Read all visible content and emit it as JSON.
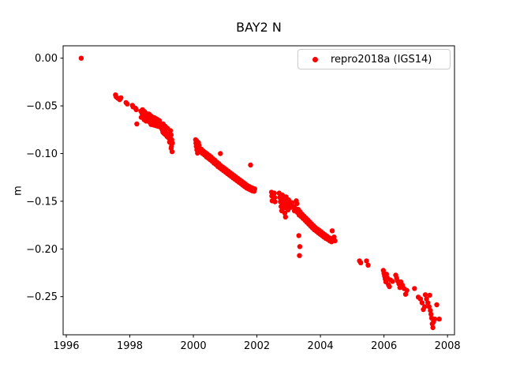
{
  "chart_data": {
    "type": "scatter",
    "title": "BAY2 N",
    "xlabel": "",
    "ylabel": "m",
    "xlim": [
      1995.9,
      2008.22
    ],
    "ylim": [
      -0.29,
      0.013
    ],
    "xticks": [
      1996,
      1998,
      2000,
      2002,
      2004,
      2006,
      2008
    ],
    "yticks": [
      0.0,
      -0.05,
      -0.1,
      -0.15,
      -0.2,
      -0.25
    ],
    "grid": false,
    "background_color": "#ffffff",
    "legend": {
      "position": "upper right",
      "entries": [
        {
          "label": "repro2018a (IGS14)",
          "marker": "circle",
          "marker_color": "#ff0000"
        }
      ]
    },
    "series": [
      {
        "name": "repro2018a (IGS14)",
        "color": "#ff0000",
        "marker": "o",
        "marker_px_radius": 3.2,
        "points": [
          [
            1996.47,
            0.0
          ],
          [
            1997.55,
            -0.0385
          ],
          [
            1997.57,
            -0.0405
          ],
          [
            1997.62,
            -0.042
          ],
          [
            1997.68,
            -0.0435
          ],
          [
            1997.72,
            -0.0415
          ],
          [
            1997.88,
            -0.0465
          ],
          [
            1997.92,
            -0.048
          ],
          [
            1998.08,
            -0.0495
          ],
          [
            1998.1,
            -0.051
          ],
          [
            1998.18,
            -0.0525
          ],
          [
            1998.2,
            -0.054
          ],
          [
            1998.22,
            -0.069
          ],
          [
            1998.35,
            -0.0555
          ],
          [
            1998.36,
            -0.062
          ],
          [
            1998.38,
            -0.0575
          ],
          [
            1998.4,
            -0.054
          ],
          [
            1998.41,
            -0.0615
          ],
          [
            1998.43,
            -0.0585
          ],
          [
            1998.45,
            -0.0645
          ],
          [
            1998.46,
            -0.056
          ],
          [
            1998.48,
            -0.0605
          ],
          [
            1998.5,
            -0.0575
          ],
          [
            1998.51,
            -0.066
          ],
          [
            1998.53,
            -0.0625
          ],
          [
            1998.55,
            -0.059
          ],
          [
            1998.56,
            -0.0655
          ],
          [
            1998.58,
            -0.0615
          ],
          [
            1998.6,
            -0.0585
          ],
          [
            1998.62,
            -0.067
          ],
          [
            1998.63,
            -0.0635
          ],
          [
            1998.65,
            -0.06
          ],
          [
            1998.67,
            -0.0695
          ],
          [
            1998.68,
            -0.0645
          ],
          [
            1998.7,
            -0.0615
          ],
          [
            1998.72,
            -0.0675
          ],
          [
            1998.73,
            -0.0635
          ],
          [
            1998.75,
            -0.07
          ],
          [
            1998.77,
            -0.066
          ],
          [
            1998.78,
            -0.0625
          ],
          [
            1998.8,
            -0.0705
          ],
          [
            1998.82,
            -0.0665
          ],
          [
            1998.83,
            -0.0635
          ],
          [
            1998.85,
            -0.071
          ],
          [
            1998.87,
            -0.068
          ],
          [
            1998.88,
            -0.0645
          ],
          [
            1998.9,
            -0.0715
          ],
          [
            1998.92,
            -0.0685
          ],
          [
            1998.93,
            -0.0655
          ],
          [
            1998.95,
            -0.072
          ],
          [
            1998.97,
            -0.069
          ],
          [
            1999.0,
            -0.0735
          ],
          [
            1999.02,
            -0.075
          ],
          [
            1999.04,
            -0.0775
          ],
          [
            1999.05,
            -0.069
          ],
          [
            1999.06,
            -0.0745
          ],
          [
            1999.08,
            -0.079
          ],
          [
            1999.1,
            -0.0765
          ],
          [
            1999.12,
            -0.0715
          ],
          [
            1999.12,
            -0.08
          ],
          [
            1999.15,
            -0.0785
          ],
          [
            1999.17,
            -0.082
          ],
          [
            1999.18,
            -0.0735
          ],
          [
            1999.2,
            -0.08
          ],
          [
            1999.22,
            -0.0835
          ],
          [
            1999.25,
            -0.0815
          ],
          [
            1999.25,
            -0.088
          ],
          [
            1999.27,
            -0.0855
          ],
          [
            1999.28,
            -0.076
          ],
          [
            1999.29,
            -0.0885
          ],
          [
            1999.3,
            -0.0805
          ],
          [
            1999.3,
            -0.0945
          ],
          [
            1999.31,
            -0.0925
          ],
          [
            1999.32,
            -0.0855
          ],
          [
            1999.33,
            -0.098
          ],
          [
            1999.34,
            -0.089
          ],
          [
            2000.07,
            -0.0855
          ],
          [
            2000.08,
            -0.089
          ],
          [
            2000.09,
            -0.0925
          ],
          [
            2000.1,
            -0.0865
          ],
          [
            2000.11,
            -0.096
          ],
          [
            2000.12,
            -0.09
          ],
          [
            2000.13,
            -0.0995
          ],
          [
            2000.14,
            -0.0935
          ],
          [
            2000.16,
            -0.0885
          ],
          [
            2000.18,
            -0.0915
          ],
          [
            2000.2,
            -0.0945
          ],
          [
            2000.23,
            -0.098
          ],
          [
            2000.26,
            -0.0955
          ],
          [
            2000.29,
            -0.1
          ],
          [
            2000.32,
            -0.0975
          ],
          [
            2000.35,
            -0.1015
          ],
          [
            2000.38,
            -0.099
          ],
          [
            2000.41,
            -0.1035
          ],
          [
            2000.44,
            -0.1005
          ],
          [
            2000.47,
            -0.105
          ],
          [
            2000.5,
            -0.102
          ],
          [
            2000.53,
            -0.1065
          ],
          [
            2000.56,
            -0.1035
          ],
          [
            2000.59,
            -0.108
          ],
          [
            2000.62,
            -0.1055
          ],
          [
            2000.65,
            -0.11
          ],
          [
            2000.68,
            -0.107
          ],
          [
            2000.71,
            -0.1115
          ],
          [
            2000.74,
            -0.109
          ],
          [
            2000.77,
            -0.1135
          ],
          [
            2000.8,
            -0.1105
          ],
          [
            2000.83,
            -0.115
          ],
          [
            2000.85,
            -0.1
          ],
          [
            2000.86,
            -0.1125
          ],
          [
            2000.89,
            -0.1165
          ],
          [
            2000.92,
            -0.114
          ],
          [
            2000.95,
            -0.118
          ],
          [
            2000.98,
            -0.1155
          ],
          [
            2001.01,
            -0.1195
          ],
          [
            2001.04,
            -0.117
          ],
          [
            2001.07,
            -0.121
          ],
          [
            2001.1,
            -0.1185
          ],
          [
            2001.13,
            -0.1225
          ],
          [
            2001.16,
            -0.12
          ],
          [
            2001.19,
            -0.124
          ],
          [
            2001.22,
            -0.1215
          ],
          [
            2001.25,
            -0.1255
          ],
          [
            2001.28,
            -0.123
          ],
          [
            2001.31,
            -0.127
          ],
          [
            2001.34,
            -0.1245
          ],
          [
            2001.37,
            -0.1285
          ],
          [
            2001.4,
            -0.126
          ],
          [
            2001.43,
            -0.13
          ],
          [
            2001.46,
            -0.1275
          ],
          [
            2001.49,
            -0.1315
          ],
          [
            2001.52,
            -0.129
          ],
          [
            2001.55,
            -0.133
          ],
          [
            2001.58,
            -0.1305
          ],
          [
            2001.61,
            -0.1345
          ],
          [
            2001.64,
            -0.132
          ],
          [
            2001.67,
            -0.136
          ],
          [
            2001.7,
            -0.1335
          ],
          [
            2001.73,
            -0.137
          ],
          [
            2001.76,
            -0.1345
          ],
          [
            2001.79,
            -0.138
          ],
          [
            2001.8,
            -0.112
          ],
          [
            2001.82,
            -0.1355
          ],
          [
            2001.85,
            -0.139
          ],
          [
            2001.88,
            -0.1365
          ],
          [
            2001.91,
            -0.1395
          ],
          [
            2001.93,
            -0.137
          ],
          [
            2002.46,
            -0.1405
          ],
          [
            2002.47,
            -0.1445
          ],
          [
            2002.48,
            -0.1495
          ],
          [
            2002.55,
            -0.1415
          ],
          [
            2002.56,
            -0.146
          ],
          [
            2002.57,
            -0.1505
          ],
          [
            2002.7,
            -0.1415
          ],
          [
            2002.72,
            -0.146
          ],
          [
            2002.74,
            -0.1505
          ],
          [
            2002.76,
            -0.1555
          ],
          [
            2002.78,
            -0.16
          ],
          [
            2002.8,
            -0.1435
          ],
          [
            2002.82,
            -0.148
          ],
          [
            2002.84,
            -0.1525
          ],
          [
            2002.86,
            -0.157
          ],
          [
            2002.88,
            -0.1625
          ],
          [
            2002.9,
            -0.1665
          ],
          [
            2002.92,
            -0.1455
          ],
          [
            2002.94,
            -0.15
          ],
          [
            2002.96,
            -0.1545
          ],
          [
            2002.98,
            -0.159
          ],
          [
            2003.0,
            -0.1485
          ],
          [
            2003.03,
            -0.153
          ],
          [
            2003.06,
            -0.1565
          ],
          [
            2003.1,
            -0.1515
          ],
          [
            2003.15,
            -0.1555
          ],
          [
            2003.18,
            -0.16
          ],
          [
            2003.21,
            -0.1575
          ],
          [
            2003.24,
            -0.1495
          ],
          [
            2003.26,
            -0.1525
          ],
          [
            2003.27,
            -0.1615
          ],
          [
            2003.3,
            -0.1585
          ],
          [
            2003.32,
            -0.186
          ],
          [
            2003.33,
            -0.1645
          ],
          [
            2003.34,
            -0.207
          ],
          [
            2003.35,
            -0.1975
          ],
          [
            2003.36,
            -0.161
          ],
          [
            2003.39,
            -0.166
          ],
          [
            2003.42,
            -0.1635
          ],
          [
            2003.45,
            -0.168
          ],
          [
            2003.48,
            -0.1655
          ],
          [
            2003.51,
            -0.17
          ],
          [
            2003.54,
            -0.1675
          ],
          [
            2003.57,
            -0.172
          ],
          [
            2003.6,
            -0.1695
          ],
          [
            2003.63,
            -0.174
          ],
          [
            2003.66,
            -0.1715
          ],
          [
            2003.69,
            -0.176
          ],
          [
            2003.72,
            -0.1735
          ],
          [
            2003.75,
            -0.178
          ],
          [
            2003.78,
            -0.1755
          ],
          [
            2003.81,
            -0.18
          ],
          [
            2003.84,
            -0.1775
          ],
          [
            2003.87,
            -0.1815
          ],
          [
            2003.9,
            -0.179
          ],
          [
            2003.93,
            -0.183
          ],
          [
            2003.96,
            -0.1805
          ],
          [
            2003.99,
            -0.1845
          ],
          [
            2004.02,
            -0.182
          ],
          [
            2004.05,
            -0.186
          ],
          [
            2004.08,
            -0.1835
          ],
          [
            2004.11,
            -0.1875
          ],
          [
            2004.14,
            -0.185
          ],
          [
            2004.17,
            -0.189
          ],
          [
            2004.2,
            -0.1865
          ],
          [
            2004.23,
            -0.19
          ],
          [
            2004.26,
            -0.188
          ],
          [
            2004.29,
            -0.1915
          ],
          [
            2004.32,
            -0.189
          ],
          [
            2004.35,
            -0.1925
          ],
          [
            2004.37,
            -0.181
          ],
          [
            2004.4,
            -0.19
          ],
          [
            2004.43,
            -0.1875
          ],
          [
            2004.46,
            -0.1915
          ],
          [
            2005.23,
            -0.2125
          ],
          [
            2005.27,
            -0.2145
          ],
          [
            2005.45,
            -0.2125
          ],
          [
            2005.5,
            -0.217
          ],
          [
            2005.98,
            -0.2225
          ],
          [
            2006.0,
            -0.2255
          ],
          [
            2006.02,
            -0.2285
          ],
          [
            2006.04,
            -0.2315
          ],
          [
            2006.06,
            -0.2345
          ],
          [
            2006.08,
            -0.2265
          ],
          [
            2006.1,
            -0.23
          ],
          [
            2006.14,
            -0.2375
          ],
          [
            2006.17,
            -0.2395
          ],
          [
            2006.2,
            -0.2325
          ],
          [
            2006.27,
            -0.234
          ],
          [
            2006.37,
            -0.2275
          ],
          [
            2006.4,
            -0.2305
          ],
          [
            2006.43,
            -0.2335
          ],
          [
            2006.47,
            -0.2365
          ],
          [
            2006.5,
            -0.2405
          ],
          [
            2006.53,
            -0.2345
          ],
          [
            2006.58,
            -0.238
          ],
          [
            2006.63,
            -0.2415
          ],
          [
            2006.68,
            -0.2475
          ],
          [
            2006.72,
            -0.2435
          ],
          [
            2006.96,
            -0.2415
          ],
          [
            2007.08,
            -0.2505
          ],
          [
            2007.15,
            -0.2525
          ],
          [
            2007.2,
            -0.2565
          ],
          [
            2007.24,
            -0.2635
          ],
          [
            2007.28,
            -0.2605
          ],
          [
            2007.3,
            -0.248
          ],
          [
            2007.34,
            -0.2525
          ],
          [
            2007.38,
            -0.2565
          ],
          [
            2007.42,
            -0.2605
          ],
          [
            2007.44,
            -0.2485
          ],
          [
            2007.46,
            -0.2645
          ],
          [
            2007.48,
            -0.2685
          ],
          [
            2007.5,
            -0.2725
          ],
          [
            2007.52,
            -0.2785
          ],
          [
            2007.54,
            -0.2825
          ],
          [
            2007.56,
            -0.2765
          ],
          [
            2007.6,
            -0.2735
          ],
          [
            2007.66,
            -0.2585
          ],
          [
            2007.74,
            -0.2735
          ]
        ]
      }
    ]
  }
}
